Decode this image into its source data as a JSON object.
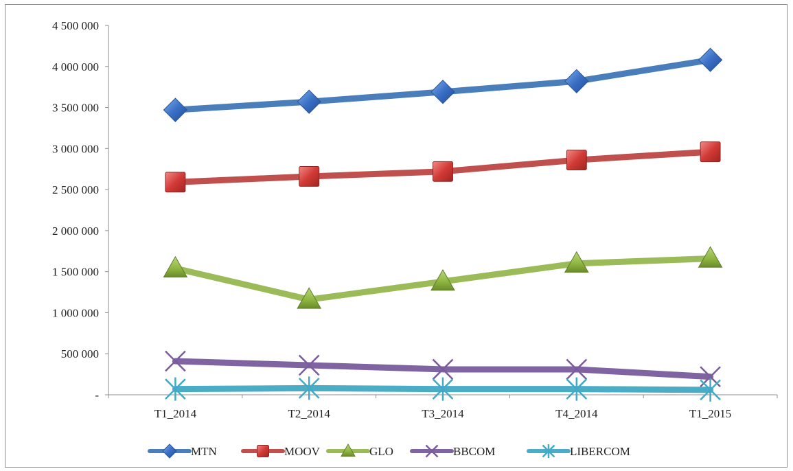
{
  "chart_data": {
    "type": "line",
    "categories": [
      "T1_2014",
      "T2_2014",
      "T3_2014",
      "T4_2014",
      "T1_2015"
    ],
    "y_ticks": [
      {
        "value": 0,
        "label": "-"
      },
      {
        "value": 500000,
        "label": "500 000"
      },
      {
        "value": 1000000,
        "label": "1 000 000"
      },
      {
        "value": 1500000,
        "label": "1 500 000"
      },
      {
        "value": 2000000,
        "label": "2 000 000"
      },
      {
        "value": 2500000,
        "label": "2 500 000"
      },
      {
        "value": 3000000,
        "label": "3 000 000"
      },
      {
        "value": 3500000,
        "label": "3 500 000"
      },
      {
        "value": 4000000,
        "label": "4 000 000"
      },
      {
        "value": 4500000,
        "label": "4 500 000"
      }
    ],
    "ylim": [
      0,
      4500000
    ],
    "grid": false,
    "legend_position": "bottom",
    "series": [
      {
        "name": "MTN",
        "marker": "diamond",
        "color": "#4a7ebb",
        "marker_color": "#3a6fc4",
        "values": [
          3470000,
          3570000,
          3690000,
          3820000,
          4080000
        ]
      },
      {
        "name": "MOOV",
        "marker": "square",
        "color": "#c0504d",
        "marker_color": "#d23a36",
        "values": [
          2590000,
          2660000,
          2720000,
          2860000,
          2960000
        ]
      },
      {
        "name": "GLO",
        "marker": "triangle",
        "color": "#9bbb59",
        "marker_color": "#8db43f",
        "values": [
          1540000,
          1160000,
          1380000,
          1600000,
          1660000
        ]
      },
      {
        "name": "BBCOM",
        "marker": "x",
        "color": "#8064a2",
        "marker_color": "#7a5c9e",
        "values": [
          410000,
          360000,
          310000,
          310000,
          220000
        ]
      },
      {
        "name": "LIBERCOM",
        "marker": "star",
        "color": "#4bacc6",
        "marker_color": "#43a9c6",
        "values": [
          70000,
          80000,
          70000,
          70000,
          60000
        ]
      }
    ]
  }
}
